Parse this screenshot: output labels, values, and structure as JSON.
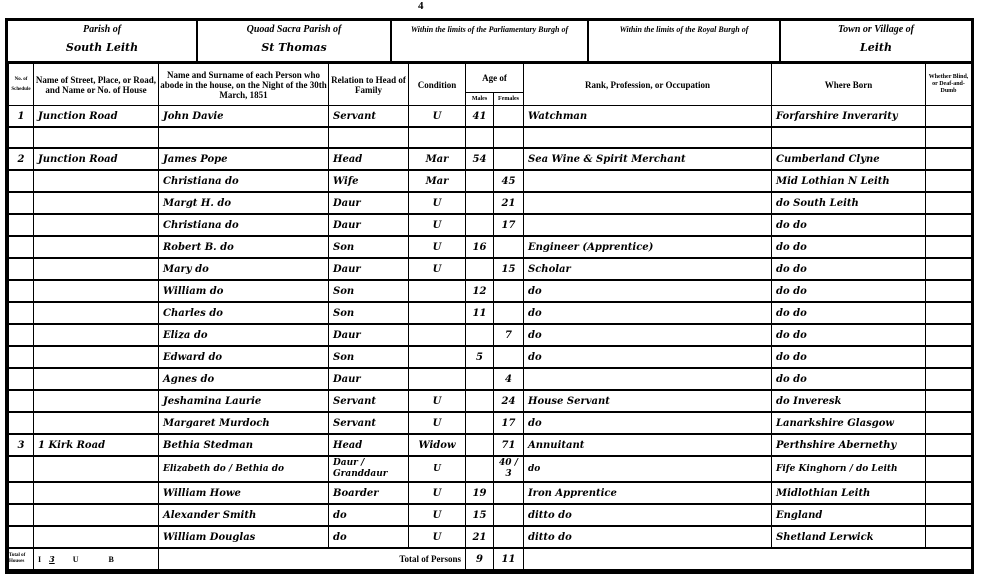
{
  "page_number": "4",
  "header": {
    "parish_label": "Parish of",
    "parish_value": "South Leith",
    "quoad_sacra_label": "Quoad Sacra Parish of",
    "quoad_sacra_value": "St Thomas",
    "parliamentary_burgh_label": "Within the limits of the Parliamentary Burgh of",
    "royal_burgh_label": "Within the limits of the Royal Burgh of",
    "town_label": "Town or Village of",
    "town_value": "Leith"
  },
  "columns": {
    "schedule": "No. of Schedule",
    "street": "Name of Street, Place, or Road, and Name or No. of House",
    "name": "Name and Surname of each Person who abode in the house, on the Night of the 30th March, 1851",
    "relation": "Relation to Head of Family",
    "condition": "Condition",
    "age": "Age of",
    "age_male": "Males",
    "age_female": "Females",
    "occupation": "Rank, Profession, or Occupation",
    "born": "Where Born",
    "blind": "Whether Blind, or Deaf-and-Dumb"
  },
  "rows": [
    {
      "schedule": "1",
      "street": "Junction Road",
      "name": "John Davie",
      "relation": "Servant",
      "condition": "U",
      "male": "41",
      "female": "",
      "occupation": "Watchman",
      "born": "Forfarshire Inverarity"
    },
    {
      "schedule": "",
      "street": "",
      "name": "",
      "relation": "",
      "condition": "",
      "male": "",
      "female": "",
      "occupation": "",
      "born": "",
      "blank": true
    },
    {
      "schedule": "2",
      "street": "Junction Road",
      "name": "James Pope",
      "relation": "Head",
      "condition": "Mar",
      "male": "54",
      "female": "",
      "occupation": "Sea Wine & Spirit Merchant",
      "born": "Cumberland Clyne"
    },
    {
      "schedule": "",
      "street": "",
      "name": "Christiana do",
      "relation": "Wife",
      "condition": "Mar",
      "male": "",
      "female": "45",
      "occupation": "",
      "born": "Mid Lothian N Leith"
    },
    {
      "schedule": "",
      "street": "",
      "name": "Margt H. do",
      "relation": "Daur",
      "condition": "U",
      "male": "",
      "female": "21",
      "occupation": "",
      "born": "do South Leith"
    },
    {
      "schedule": "",
      "street": "",
      "name": "Christiana do",
      "relation": "Daur",
      "condition": "U",
      "male": "",
      "female": "17",
      "occupation": "",
      "born": "do do"
    },
    {
      "schedule": "",
      "street": "",
      "name": "Robert B. do",
      "relation": "Son",
      "condition": "U",
      "male": "16",
      "female": "",
      "occupation": "Engineer (Apprentice)",
      "born": "do do"
    },
    {
      "schedule": "",
      "street": "",
      "name": "Mary do",
      "relation": "Daur",
      "condition": "U",
      "male": "",
      "female": "15",
      "occupation": "Scholar",
      "born": "do do"
    },
    {
      "schedule": "",
      "street": "",
      "name": "William do",
      "relation": "Son",
      "condition": "",
      "male": "12",
      "female": "",
      "occupation": "do",
      "born": "do do"
    },
    {
      "schedule": "",
      "street": "",
      "name": "Charles do",
      "relation": "Son",
      "condition": "",
      "male": "11",
      "female": "",
      "occupation": "do",
      "born": "do do"
    },
    {
      "schedule": "",
      "street": "",
      "name": "Eliza do",
      "relation": "Daur",
      "condition": "",
      "male": "",
      "female": "7",
      "occupation": "do",
      "born": "do do"
    },
    {
      "schedule": "",
      "street": "",
      "name": "Edward do",
      "relation": "Son",
      "condition": "",
      "male": "5",
      "female": "",
      "occupation": "do",
      "born": "do do"
    },
    {
      "schedule": "",
      "street": "",
      "name": "Agnes do",
      "relation": "Daur",
      "condition": "",
      "male": "",
      "female": "4",
      "occupation": "",
      "born": "do do"
    },
    {
      "schedule": "",
      "street": "",
      "name": "Jeshamina Laurie",
      "relation": "Servant",
      "condition": "U",
      "male": "",
      "female": "24",
      "occupation": "House Servant",
      "born": "do Inveresk"
    },
    {
      "schedule": "",
      "street": "",
      "name": "Margaret Murdoch",
      "relation": "Servant",
      "condition": "U",
      "male": "",
      "female": "17",
      "occupation": "do",
      "born": "Lanarkshire Glasgow"
    },
    {
      "schedule": "3",
      "street": "1 Kirk Road",
      "name": "Bethia Stedman",
      "relation": "Head",
      "condition": "Widow",
      "male": "",
      "female": "71",
      "occupation": "Annuitant",
      "born": "Perthshire Abernethy"
    },
    {
      "schedule": "",
      "street": "",
      "name": "Elizabeth do / Bethia do",
      "relation": "Daur / Granddaur",
      "condition": "U",
      "male": "",
      "female": "40 / 3",
      "occupation": "do",
      "born": "Fife Kinghorn / do Leith",
      "two": true
    },
    {
      "schedule": "",
      "street": "",
      "name": "William Howe",
      "relation": "Boarder",
      "condition": "U",
      "male": "19",
      "female": "",
      "occupation": "Iron Apprentice",
      "born": "Midlothian Leith"
    },
    {
      "schedule": "",
      "street": "",
      "name": "Alexander Smith",
      "relation": "do",
      "condition": "U",
      "male": "15",
      "female": "",
      "occupation": "ditto do",
      "born": "England"
    },
    {
      "schedule": "",
      "street": "",
      "name": "William Douglas",
      "relation": "do",
      "condition": "U",
      "male": "21",
      "female": "",
      "occupation": "ditto do",
      "born": "Shetland Lerwick"
    }
  ],
  "totals": {
    "houses_label": "Total of Houses",
    "inhabited_label": "I",
    "inhabited_value": "3",
    "uninhabited_label": "U",
    "building_label": "B",
    "persons_label": "Total of Persons",
    "males": "9",
    "females": "11"
  }
}
